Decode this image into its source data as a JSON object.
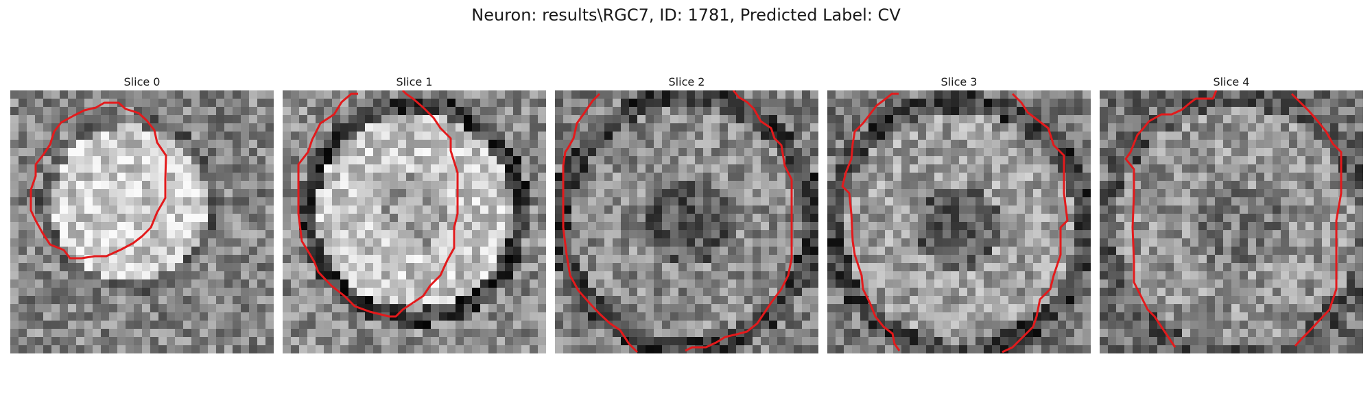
{
  "figure": {
    "title": "Neuron: results\\RGC7, ID: 1781, Predicted Label: CV"
  },
  "colors": {
    "contour": "#e31a1c"
  },
  "slices": [
    {
      "label": "Slice 0"
    },
    {
      "label": "Slice 1"
    },
    {
      "label": "Slice 2"
    },
    {
      "label": "Slice 3"
    },
    {
      "label": "Slice 4"
    }
  ]
}
